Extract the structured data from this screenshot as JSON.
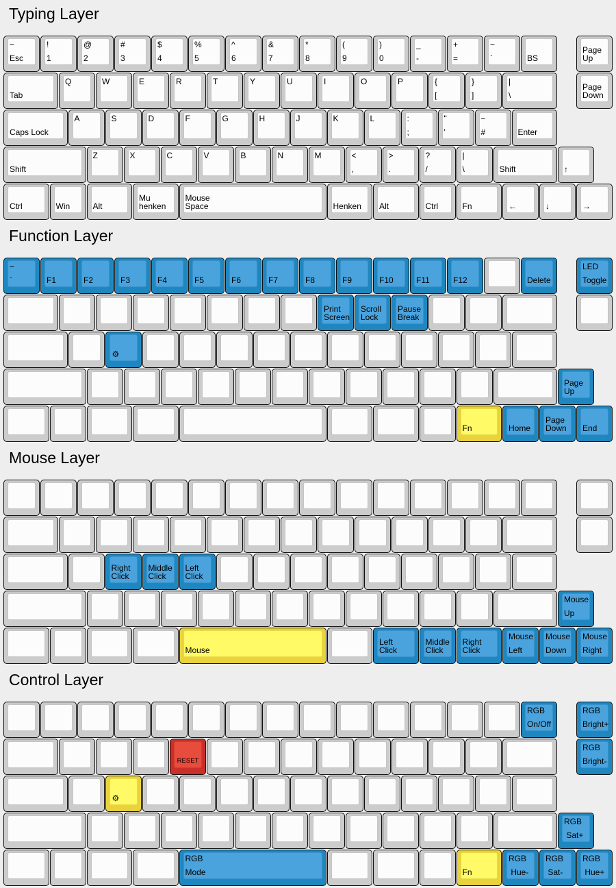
{
  "colors": {
    "gray": "#cccccc",
    "blue": "#4aa3dd",
    "yellow": "#fffa66",
    "red": "#e74c3c"
  },
  "layers": [
    {
      "title": "Typing Layer",
      "rows": [
        [
          {
            "t": "~",
            "b": "Esc"
          },
          {
            "t": "!",
            "b": "1"
          },
          {
            "t": "@",
            "b": "2"
          },
          {
            "t": "#",
            "b": "3"
          },
          {
            "t": "$",
            "b": "4"
          },
          {
            "t": "%",
            "b": "5"
          },
          {
            "t": "^",
            "b": "6"
          },
          {
            "t": "&",
            "b": "7"
          },
          {
            "t": "*",
            "b": "8"
          },
          {
            "t": "(",
            "b": "9"
          },
          {
            "t": ")",
            "b": "0"
          },
          {
            "t": "_",
            "b": "-"
          },
          {
            "t": "+",
            "b": "="
          },
          {
            "t": "~",
            "b": "`"
          },
          {
            "b": "BS"
          },
          {
            "b": "Page\nUp"
          }
        ],
        [
          {
            "b": "Tab"
          },
          {
            "t": "Q"
          },
          {
            "t": "W"
          },
          {
            "t": "E"
          },
          {
            "t": "R"
          },
          {
            "t": "T"
          },
          {
            "t": "Y"
          },
          {
            "t": "U"
          },
          {
            "t": "I"
          },
          {
            "t": "O"
          },
          {
            "t": "P"
          },
          {
            "t": "{",
            "b": "["
          },
          {
            "t": "}",
            "b": "]"
          },
          {
            "t": "|",
            "b": "\\"
          },
          {
            "b": "Page\nDown"
          }
        ],
        [
          {
            "b": "Caps Lock"
          },
          {
            "t": "A"
          },
          {
            "t": "S"
          },
          {
            "t": "D"
          },
          {
            "t": "F"
          },
          {
            "t": "G"
          },
          {
            "t": "H"
          },
          {
            "t": "J"
          },
          {
            "t": "K"
          },
          {
            "t": "L"
          },
          {
            "t": ":",
            "b": ";"
          },
          {
            "t": "\"",
            "b": "'"
          },
          {
            "t": "~",
            "b": "#"
          },
          {
            "b": "Enter"
          }
        ],
        [
          {
            "b": "Shift"
          },
          {
            "t": "Z"
          },
          {
            "t": "X"
          },
          {
            "t": "C"
          },
          {
            "t": "V"
          },
          {
            "t": "B"
          },
          {
            "t": "N"
          },
          {
            "t": "M"
          },
          {
            "t": "<",
            "b": ","
          },
          {
            "t": ">",
            "b": "."
          },
          {
            "t": "?",
            "b": "/"
          },
          {
            "t": "|",
            "b": "\\"
          },
          {
            "b": "Shift"
          },
          {
            "b": "↑"
          }
        ],
        [
          {
            "b": "Ctrl"
          },
          {
            "b": "Win"
          },
          {
            "b": "Alt"
          },
          {
            "b": "Mu\nhenken"
          },
          {
            "b": "Mouse\nSpace"
          },
          {
            "b": "Henken"
          },
          {
            "b": "Alt"
          },
          {
            "b": "Ctrl"
          },
          {
            "b": "Fn"
          },
          {
            "b": "←"
          },
          {
            "b": "↓"
          },
          {
            "b": "→"
          }
        ]
      ]
    },
    {
      "title": "Function Layer",
      "rows": [
        [
          {
            "t": "~",
            "b": "`",
            "c": "blue"
          },
          {
            "b": "F1",
            "c": "blue"
          },
          {
            "b": "F2",
            "c": "blue"
          },
          {
            "b": "F3",
            "c": "blue"
          },
          {
            "b": "F4",
            "c": "blue"
          },
          {
            "b": "F5",
            "c": "blue"
          },
          {
            "b": "F6",
            "c": "blue"
          },
          {
            "b": "F7",
            "c": "blue"
          },
          {
            "b": "F8",
            "c": "blue"
          },
          {
            "b": "F9",
            "c": "blue"
          },
          {
            "b": "F10",
            "c": "blue"
          },
          {
            "b": "F11",
            "c": "blue"
          },
          {
            "b": "F12",
            "c": "blue"
          },
          {},
          {
            "b": "Delete",
            "c": "blue"
          },
          {
            "t": "LED",
            "b": "Toggle",
            "c": "blue"
          }
        ],
        [
          {},
          {},
          {},
          {},
          {},
          {},
          {},
          {},
          {
            "b": "Print\nScreen",
            "c": "blue"
          },
          {
            "b": "Scroll\nLock",
            "c": "blue"
          },
          {
            "b": "Pause\nBreak",
            "c": "blue"
          },
          {},
          {},
          {},
          {}
        ],
        [
          {},
          {},
          {
            "icon": "gear-icon",
            "c": "blue"
          },
          {},
          {},
          {},
          {},
          {},
          {},
          {},
          {},
          {},
          {},
          {}
        ],
        [
          {},
          {},
          {},
          {},
          {},
          {},
          {},
          {},
          {},
          {},
          {},
          {},
          {},
          {
            "b": "Page\nUp",
            "c": "blue"
          }
        ],
        [
          {},
          {},
          {},
          {},
          {},
          {},
          {},
          {},
          {
            "b": "Fn",
            "c": "yellow"
          },
          {
            "b": "Home",
            "c": "blue"
          },
          {
            "b": "Page\nDown",
            "c": "blue"
          },
          {
            "b": "End",
            "c": "blue"
          }
        ]
      ]
    },
    {
      "title": "Mouse Layer",
      "rows": [
        [
          {},
          {},
          {},
          {},
          {},
          {},
          {},
          {},
          {},
          {},
          {},
          {},
          {},
          {},
          {},
          {}
        ],
        [
          {},
          {},
          {},
          {},
          {},
          {},
          {},
          {},
          {},
          {},
          {},
          {},
          {},
          {},
          {}
        ],
        [
          {},
          {},
          {
            "b": "Right\nClick",
            "c": "blue"
          },
          {
            "b": "Middle\nClick",
            "c": "blue"
          },
          {
            "b": "Left\nClick",
            "c": "blue"
          },
          {},
          {},
          {},
          {},
          {},
          {},
          {},
          {},
          {}
        ],
        [
          {},
          {},
          {},
          {},
          {},
          {},
          {},
          {},
          {},
          {},
          {},
          {},
          {},
          {
            "t": "Mouse",
            "b": "Up",
            "c": "blue"
          }
        ],
        [
          {},
          {},
          {},
          {},
          {
            "b": "Mouse",
            "c": "yellow"
          },
          {},
          {
            "b": "Left\nClick",
            "c": "blue"
          },
          {
            "b": "Middle\nClick",
            "c": "blue"
          },
          {
            "b": "Right\nClick",
            "c": "blue"
          },
          {
            "t": "Mouse",
            "b": "Left",
            "c": "blue"
          },
          {
            "t": "Mouse",
            "b": "Down",
            "c": "blue"
          },
          {
            "t": "Mouse",
            "b": "Right",
            "c": "blue"
          }
        ]
      ]
    },
    {
      "title": "Control Layer",
      "rows": [
        [
          {},
          {},
          {},
          {},
          {},
          {},
          {},
          {},
          {},
          {},
          {},
          {},
          {},
          {},
          {
            "t": "RGB",
            "b": "On/Off",
            "c": "blue"
          },
          {
            "t": "RGB",
            "b": "Bright+",
            "c": "blue"
          }
        ],
        [
          {},
          {},
          {},
          {},
          {
            "b": "RESET",
            "c": "red",
            "small": true
          },
          {},
          {},
          {},
          {},
          {},
          {},
          {},
          {},
          {},
          {
            "t": "RGB",
            "b": "Bright-",
            "c": "blue"
          }
        ],
        [
          {},
          {},
          {
            "icon": "gear-icon",
            "c": "yellow"
          },
          {},
          {},
          {},
          {},
          {},
          {},
          {},
          {},
          {},
          {},
          {}
        ],
        [
          {},
          {},
          {},
          {},
          {},
          {},
          {},
          {},
          {},
          {},
          {},
          {},
          {},
          {
            "t": "RGB",
            "b": " Sat+",
            "c": "blue"
          }
        ],
        [
          {},
          {},
          {},
          {},
          {
            "t": "RGB",
            "b": "Mode",
            "c": "blue"
          },
          {},
          {},
          {},
          {
            "b": "Fn",
            "c": "yellow"
          },
          {
            "t": "RGB",
            "b": " Hue-",
            "c": "blue"
          },
          {
            "t": "RGB",
            "b": " Sat-",
            "c": "blue"
          },
          {
            "t": "RGB",
            "b": " Hue+",
            "c": "blue"
          }
        ]
      ]
    }
  ]
}
